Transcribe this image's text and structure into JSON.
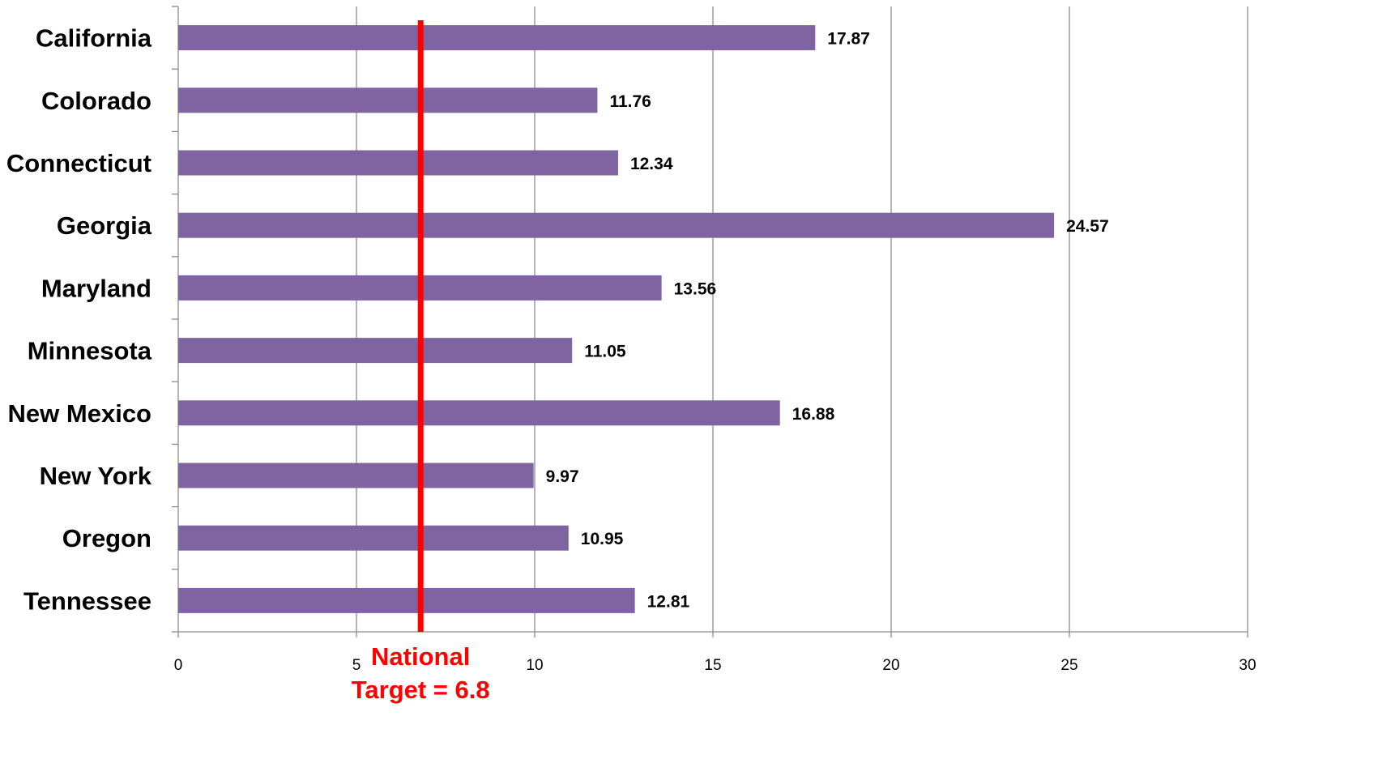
{
  "chart_data": {
    "type": "bar",
    "orientation": "horizontal",
    "categories": [
      "California",
      "Colorado",
      "Connecticut",
      "Georgia",
      "Maryland",
      "Minnesota",
      "New Mexico",
      "New York",
      "Oregon",
      "Tennessee"
    ],
    "series": [
      {
        "values": [
          17.87,
          11.76,
          12.34,
          24.57,
          13.56,
          11.05,
          16.88,
          9.97,
          10.95,
          12.81
        ]
      }
    ],
    "data_labels": [
      "17.87",
      "11.76",
      "12.34",
      "24.57",
      "13.56",
      "11.05",
      "16.88",
      "9.97",
      "10.95",
      "12.81"
    ],
    "xlim": [
      0,
      30
    ],
    "xticks": [
      0,
      5,
      10,
      15,
      20,
      25,
      30
    ],
    "grid": "vertical",
    "bar_color": "#8064a2",
    "reference_line": {
      "value": 6.8,
      "color": "#ff0000",
      "label_line1": "National",
      "label_line2": "Target = 6.8"
    }
  }
}
